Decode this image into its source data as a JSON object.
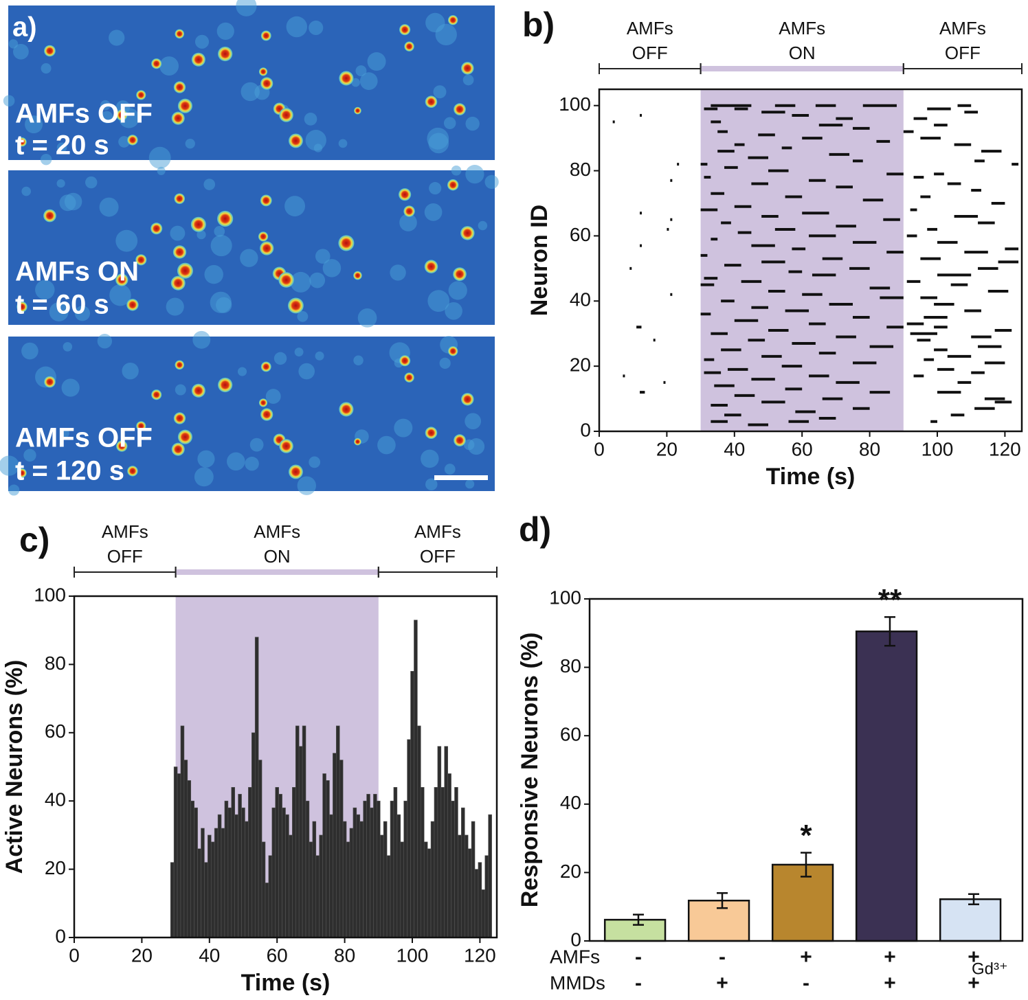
{
  "image_panel": {
    "panel_label": "a)",
    "frames": [
      {
        "state": "AMFs OFF",
        "time": "t = 20 s"
      },
      {
        "state": "AMFs ON",
        "time": "t = 60 s"
      },
      {
        "state": "AMFs OFF",
        "time": "t = 120 s"
      }
    ]
  },
  "chart_data": [
    {
      "type": "raster",
      "panel_label": "b)",
      "xlabel": "Time (s)",
      "ylabel": "Neuron ID",
      "xlim": [
        0,
        125
      ],
      "ylim": [
        0,
        105
      ],
      "xticks": [
        0,
        20,
        40,
        60,
        80,
        100,
        120
      ],
      "yticks": [
        0,
        20,
        40,
        60,
        80,
        100
      ],
      "color": "#111111",
      "shade_color": "#cfc2de",
      "phases": [
        {
          "lines": [
            "AMFs",
            "OFF"
          ],
          "start": 0,
          "end": 30,
          "shaded": false
        },
        {
          "lines": [
            "AMFs",
            "ON"
          ],
          "start": 30,
          "end": 90,
          "shaded": true
        },
        {
          "lines": [
            "AMFs",
            "OFF"
          ],
          "start": 90,
          "end": 125,
          "shaded": false
        }
      ],
      "events": [
        [
          95,
          4,
          4.5
        ],
        [
          97,
          12,
          12.5
        ],
        [
          82,
          23,
          23.5
        ],
        [
          77,
          21,
          21.5
        ],
        [
          67,
          12,
          12.5
        ],
        [
          65,
          21,
          21.5
        ],
        [
          62,
          20,
          20.5
        ],
        [
          57,
          12,
          12.5
        ],
        [
          50,
          9,
          9.5
        ],
        [
          42,
          21,
          21.5
        ],
        [
          32,
          11,
          12.5
        ],
        [
          28,
          16,
          16.5
        ],
        [
          17,
          7,
          7.5
        ],
        [
          15,
          19,
          19.5
        ],
        [
          12,
          12,
          13.5
        ],
        [
          100,
          33,
          45
        ],
        [
          100,
          52,
          58
        ],
        [
          100,
          64,
          70
        ],
        [
          100,
          78,
          88
        ],
        [
          99,
          31,
          35
        ],
        [
          99,
          40,
          44
        ],
        [
          98,
          48,
          55
        ],
        [
          97,
          57,
          62
        ],
        [
          96,
          70,
          75
        ],
        [
          95,
          33,
          36
        ],
        [
          94,
          65,
          72
        ],
        [
          93,
          75,
          80
        ],
        [
          92,
          35,
          38
        ],
        [
          91,
          47,
          52
        ],
        [
          90,
          60,
          66
        ],
        [
          89,
          82,
          86
        ],
        [
          88,
          40,
          43
        ],
        [
          87,
          54,
          57
        ],
        [
          86,
          35,
          40
        ],
        [
          85,
          68,
          74
        ],
        [
          84,
          44,
          50
        ],
        [
          83,
          75,
          78
        ],
        [
          82,
          30,
          32
        ],
        [
          81,
          37,
          41
        ],
        [
          80,
          50,
          56
        ],
        [
          79,
          85,
          90
        ],
        [
          78,
          31,
          33
        ],
        [
          77,
          62,
          67
        ],
        [
          76,
          45,
          50
        ],
        [
          75,
          70,
          75
        ],
        [
          73,
          33,
          37
        ],
        [
          72,
          55,
          60
        ],
        [
          71,
          78,
          84
        ],
        [
          69,
          40,
          45
        ],
        [
          68,
          30,
          35
        ],
        [
          67,
          60,
          68
        ],
        [
          66,
          48,
          53
        ],
        [
          65,
          84,
          89
        ],
        [
          64,
          36,
          39
        ],
        [
          63,
          70,
          76
        ],
        [
          62,
          52,
          58
        ],
        [
          61,
          41,
          45
        ],
        [
          60,
          62,
          70
        ],
        [
          59,
          33,
          35
        ],
        [
          58,
          75,
          82
        ],
        [
          57,
          45,
          52
        ],
        [
          56,
          57,
          61
        ],
        [
          55,
          85,
          90
        ],
        [
          54,
          30,
          32
        ],
        [
          53,
          66,
          72
        ],
        [
          52,
          48,
          55
        ],
        [
          51,
          37,
          42
        ],
        [
          50,
          74,
          80
        ],
        [
          49,
          56,
          60
        ],
        [
          48,
          63,
          70
        ],
        [
          47,
          31,
          35
        ],
        [
          46,
          42,
          48
        ],
        [
          45,
          30,
          34
        ],
        [
          44,
          80,
          86
        ],
        [
          43,
          50,
          55
        ],
        [
          42,
          60,
          66
        ],
        [
          41,
          83,
          90
        ],
        [
          40,
          36,
          40
        ],
        [
          39,
          68,
          75
        ],
        [
          38,
          45,
          50
        ],
        [
          37,
          55,
          62
        ],
        [
          36,
          30,
          33
        ],
        [
          35,
          75,
          80
        ],
        [
          34,
          40,
          47
        ],
        [
          33,
          62,
          67
        ],
        [
          32,
          85,
          90
        ],
        [
          31,
          50,
          56
        ],
        [
          30,
          33,
          38
        ],
        [
          29,
          70,
          76
        ],
        [
          28,
          44,
          49
        ],
        [
          27,
          57,
          64
        ],
        [
          26,
          80,
          87
        ],
        [
          25,
          36,
          42
        ],
        [
          24,
          65,
          70
        ],
        [
          23,
          48,
          54
        ],
        [
          22,
          31,
          34
        ],
        [
          21,
          75,
          82
        ],
        [
          20,
          54,
          60
        ],
        [
          19,
          38,
          44
        ],
        [
          18,
          31,
          36
        ],
        [
          17,
          62,
          68
        ],
        [
          16,
          45,
          52
        ],
        [
          15,
          70,
          77
        ],
        [
          14,
          34,
          40
        ],
        [
          13,
          55,
          60
        ],
        [
          12,
          80,
          86
        ],
        [
          11,
          40,
          46
        ],
        [
          10,
          66,
          72
        ],
        [
          9,
          48,
          55
        ],
        [
          8,
          33,
          38
        ],
        [
          7,
          75,
          80
        ],
        [
          6,
          58,
          64
        ],
        [
          5,
          37,
          42
        ],
        [
          4,
          65,
          70
        ],
        [
          3,
          33,
          38
        ],
        [
          3,
          56,
          62
        ],
        [
          2,
          44,
          50
        ],
        [
          100,
          106,
          110
        ],
        [
          99,
          97,
          104
        ],
        [
          98,
          108,
          112
        ],
        [
          96,
          93,
          97
        ],
        [
          94,
          99,
          103
        ],
        [
          92,
          90,
          93
        ],
        [
          90,
          95,
          101
        ],
        [
          88,
          105,
          110
        ],
        [
          86,
          113,
          119
        ],
        [
          83,
          111,
          114
        ],
        [
          82,
          122,
          124
        ],
        [
          79,
          99,
          102
        ],
        [
          78,
          93,
          96
        ],
        [
          76,
          103,
          107
        ],
        [
          74,
          110,
          113
        ],
        [
          72,
          95,
          98
        ],
        [
          70,
          116,
          120
        ],
        [
          68,
          92,
          94
        ],
        [
          66,
          105,
          112
        ],
        [
          64,
          112,
          117
        ],
        [
          62,
          97,
          100
        ],
        [
          60,
          91,
          94
        ],
        [
          58,
          100,
          106
        ],
        [
          56,
          120,
          124
        ],
        [
          55,
          108,
          115
        ],
        [
          53,
          95,
          101
        ],
        [
          52,
          118,
          124
        ],
        [
          50,
          112,
          118
        ],
        [
          48,
          100,
          110
        ],
        [
          46,
          91,
          95
        ],
        [
          45,
          104,
          109
        ],
        [
          43,
          115,
          121
        ],
        [
          41,
          95,
          100
        ],
        [
          39,
          99,
          105
        ],
        [
          37,
          108,
          113
        ],
        [
          35,
          96,
          103
        ],
        [
          33,
          91,
          96
        ],
        [
          32,
          99,
          103
        ],
        [
          31,
          117,
          122
        ],
        [
          30,
          92,
          100
        ],
        [
          29,
          110,
          116
        ],
        [
          28,
          94,
          98
        ],
        [
          26,
          112,
          119
        ],
        [
          25,
          99,
          103
        ],
        [
          23,
          103,
          110
        ],
        [
          22,
          96,
          99
        ],
        [
          21,
          114,
          120
        ],
        [
          19,
          100,
          105
        ],
        [
          18,
          110,
          114
        ],
        [
          17,
          93,
          96
        ],
        [
          15,
          106,
          110
        ],
        [
          12,
          100,
          107
        ],
        [
          10,
          114,
          120
        ],
        [
          9,
          117,
          122
        ],
        [
          7,
          111,
          117
        ],
        [
          5,
          104,
          108
        ],
        [
          3,
          98,
          100
        ]
      ]
    },
    {
      "type": "bar",
      "panel_label": "c)",
      "xlabel": "Time (s)",
      "ylabel": "Active Neurons (%)",
      "xlim": [
        0,
        125
      ],
      "ylim": [
        0,
        100
      ],
      "xticks": [
        0,
        20,
        40,
        60,
        80,
        100,
        120
      ],
      "yticks": [
        0,
        20,
        40,
        60,
        80,
        100
      ],
      "color": "#2e2e2e",
      "shade_color": "#cfc2de",
      "phases": [
        {
          "lines": [
            "AMFs",
            "OFF"
          ],
          "start": 0,
          "end": 30,
          "shaded": false
        },
        {
          "lines": [
            "AMFs",
            "ON"
          ],
          "start": 30,
          "end": 90,
          "shaded": true
        },
        {
          "lines": [
            "AMFs",
            "OFF"
          ],
          "start": 90,
          "end": 125,
          "shaded": false
        }
      ],
      "x": [
        29,
        30,
        31,
        32,
        33,
        34,
        35,
        36,
        37,
        38,
        39,
        40,
        41,
        42,
        43,
        44,
        45,
        46,
        47,
        48,
        49,
        50,
        51,
        52,
        53,
        54,
        55,
        56,
        57,
        58,
        59,
        60,
        61,
        62,
        63,
        64,
        65,
        66,
        67,
        68,
        69,
        70,
        71,
        72,
        73,
        74,
        75,
        76,
        77,
        78,
        79,
        80,
        81,
        82,
        83,
        84,
        85,
        86,
        87,
        88,
        89,
        90,
        91,
        92,
        93,
        94,
        95,
        96,
        97,
        98,
        99,
        100,
        101,
        102,
        103,
        104,
        105,
        106,
        107,
        108,
        109,
        110,
        111,
        112,
        113,
        114,
        115,
        116,
        117,
        118,
        119,
        120,
        121,
        122,
        123
      ],
      "values": [
        22,
        50,
        48,
        62,
        52,
        46,
        40,
        38,
        26,
        32,
        22,
        30,
        28,
        32,
        36,
        32,
        40,
        38,
        44,
        36,
        42,
        38,
        34,
        44,
        60,
        88,
        52,
        28,
        16,
        24,
        38,
        44,
        42,
        38,
        36,
        30,
        44,
        62,
        56,
        62,
        40,
        28,
        34,
        24,
        30,
        48,
        46,
        36,
        54,
        62,
        52,
        34,
        28,
        32,
        38,
        36,
        34,
        40,
        42,
        38,
        42,
        40,
        30,
        34,
        24,
        40,
        44,
        36,
        28,
        40,
        58,
        78,
        93,
        62,
        44,
        28,
        26,
        34,
        44,
        56,
        44,
        56,
        48,
        40,
        44,
        30,
        38,
        30,
        26,
        34,
        20,
        22,
        14,
        24,
        36
      ]
    },
    {
      "type": "bar",
      "panel_label": "d)",
      "ylabel": "Responsive Neurons (%)",
      "ylim": [
        0,
        100
      ],
      "yticks": [
        0,
        20,
        40,
        60,
        80,
        100
      ],
      "values": [
        6.2,
        11.8,
        22.3,
        90.5,
        12.2
      ],
      "errors": [
        1.5,
        2.2,
        3.5,
        4.2,
        1.5
      ],
      "colors": [
        "#c6e0a0",
        "#f8c997",
        "#b8862e",
        "#3b3153",
        "#d6e3f3"
      ],
      "significance": [
        null,
        null,
        "*",
        "**",
        null
      ],
      "conditions": [
        {
          "name": "AMFs",
          "signs": [
            "-",
            "-",
            "+",
            "+",
            "+"
          ]
        },
        {
          "name": "MMDs",
          "signs": [
            "-",
            "+",
            "-",
            "+",
            "+"
          ]
        }
      ],
      "extra_label": "Gd³⁺"
    }
  ]
}
